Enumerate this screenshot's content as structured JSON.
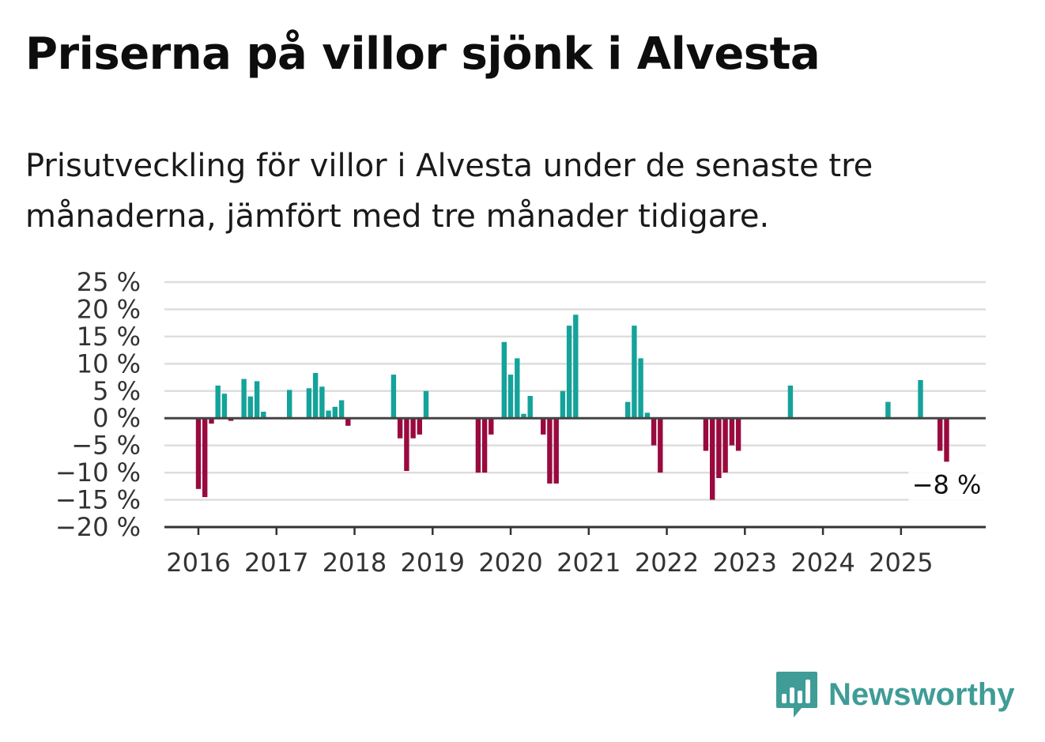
{
  "title": "Priserna på villor sjönk i Alvesta",
  "subtitle": "Prisutveckling för villor i Alvesta under de senaste tre månaderna, jämfört med tre månader tidigare.",
  "brand": "Newsworthy",
  "colors": {
    "positive": "#14a39a",
    "negative": "#990a3e",
    "grid": "#dddddd",
    "axis": "#333333",
    "brand": "#3f9c96"
  },
  "chart_data": {
    "type": "bar",
    "y_tick_labels": [
      "25 %",
      "20 %",
      "15 %",
      "10 %",
      "5 %",
      "0 %",
      "−5 %",
      "−10 %",
      "−15 %",
      "−20 %"
    ],
    "y_ticks": [
      25,
      20,
      15,
      10,
      5,
      0,
      -5,
      -10,
      -15,
      -20
    ],
    "ylim": [
      -20,
      25
    ],
    "x_tick_labels": [
      "2016",
      "2017",
      "2018",
      "2019",
      "2020",
      "2021",
      "2022",
      "2023",
      "2024",
      "2025"
    ],
    "start": "2016-01",
    "end": "2025-08",
    "grid": true,
    "last_value_label": "−8 %",
    "series": [
      {
        "values": [
          [
            0,
            -13
          ],
          [
            1,
            -14.5
          ],
          [
            2,
            -1
          ],
          [
            3,
            6
          ],
          [
            4,
            4.5
          ],
          [
            5,
            -0.5
          ],
          [
            7,
            7.2
          ],
          [
            8,
            4
          ],
          [
            9,
            6.8
          ],
          [
            10,
            1.2
          ],
          [
            14,
            5.2
          ],
          [
            17,
            5.5
          ],
          [
            18,
            8.3
          ],
          [
            19,
            5.8
          ],
          [
            20,
            1.4
          ],
          [
            21,
            2.1
          ],
          [
            22,
            3.3
          ],
          [
            23,
            -1.4
          ],
          [
            30,
            8
          ],
          [
            31,
            -3.7
          ],
          [
            32,
            -9.7
          ],
          [
            33,
            -3.7
          ],
          [
            34,
            -3
          ],
          [
            35,
            5
          ],
          [
            43,
            -10
          ],
          [
            44,
            -10
          ],
          [
            45,
            -3
          ],
          [
            47,
            14
          ],
          [
            48,
            8
          ],
          [
            49,
            11
          ],
          [
            50,
            0.8
          ],
          [
            51,
            4.1
          ],
          [
            53,
            -3
          ],
          [
            54,
            -12
          ],
          [
            55,
            -12
          ],
          [
            56,
            5
          ],
          [
            57,
            17
          ],
          [
            58,
            19
          ],
          [
            66,
            3
          ],
          [
            67,
            17
          ],
          [
            68,
            11
          ],
          [
            69,
            1
          ],
          [
            70,
            -5
          ],
          [
            71,
            -10
          ],
          [
            78,
            -6
          ],
          [
            79,
            -15
          ],
          [
            80,
            -11
          ],
          [
            81,
            -10
          ],
          [
            82,
            -5
          ],
          [
            83,
            -6
          ],
          [
            91,
            6
          ],
          [
            106,
            3
          ],
          [
            111,
            7
          ],
          [
            114,
            -6
          ],
          [
            115,
            -8
          ]
        ]
      }
    ]
  }
}
